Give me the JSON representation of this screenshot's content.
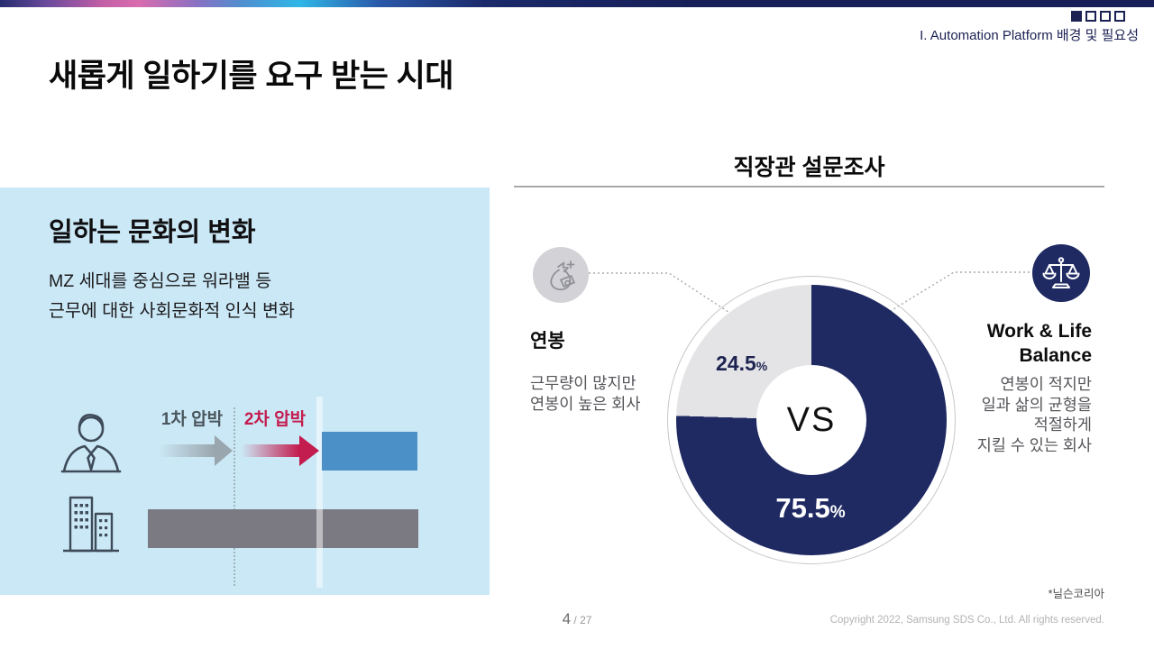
{
  "header": {
    "title": "새롭게 일하기를 요구 받는 시대",
    "section_label": "I. Automation Platform 배경 및 필요성",
    "progress_squares": [
      "filled",
      "empty",
      "empty",
      "empty"
    ]
  },
  "left_panel": {
    "heading": "일하는 문화의 변화",
    "subtitle_lines": [
      "MZ 세대를 중심으로 워라밸 등",
      "근무에 대한 사회문화적 인식 변화"
    ],
    "pressure_labels": {
      "first": "1차 압박",
      "second": "2차 압박"
    }
  },
  "survey": {
    "title": "직장관 설문조사",
    "vs_label": "VS",
    "salary_option": {
      "heading": "연봉",
      "desc_lines": [
        "근무량이 많지만",
        "연봉이 높은 회사"
      ]
    },
    "wlb_option": {
      "heading_lines": [
        "Work & Life",
        "Balance"
      ],
      "desc_lines": [
        "연봉이 적지만",
        "일과 삶의 균형을",
        "적절하게",
        "지킬 수 있는 회사"
      ]
    },
    "source_note": "*닐슨코리아"
  },
  "chart_data": {
    "type": "pie",
    "donut": true,
    "title": "직장관 설문조사",
    "center_label": "VS",
    "percent_unit": "%",
    "direction": "clockwise from 12 o'clock",
    "slices": [
      {
        "label": "Work & Life Balance — 연봉이 적지만 일과 삶의 균형을 적절하게 지킬 수 있는 회사",
        "value": 75.5,
        "color": "#1f2a63"
      },
      {
        "label": "연봉 — 근무량이 많지만 연봉이 높은 회사",
        "value": 24.5,
        "color": "#e4e4e7"
      }
    ]
  },
  "footer": {
    "page_current": "4",
    "page_separator": " / ",
    "page_total": "27",
    "copyright": "Copyright 2022, Samsung SDS Co., Ltd. All rights reserved."
  },
  "colors": {
    "navy": "#1f2a63",
    "crimson": "#c31c4e",
    "steel_blue": "#4b90c7",
    "panel_blue": "#cbe8f6",
    "bar_gray": "#7b7a82",
    "slice_gray": "#e4e4e7"
  }
}
